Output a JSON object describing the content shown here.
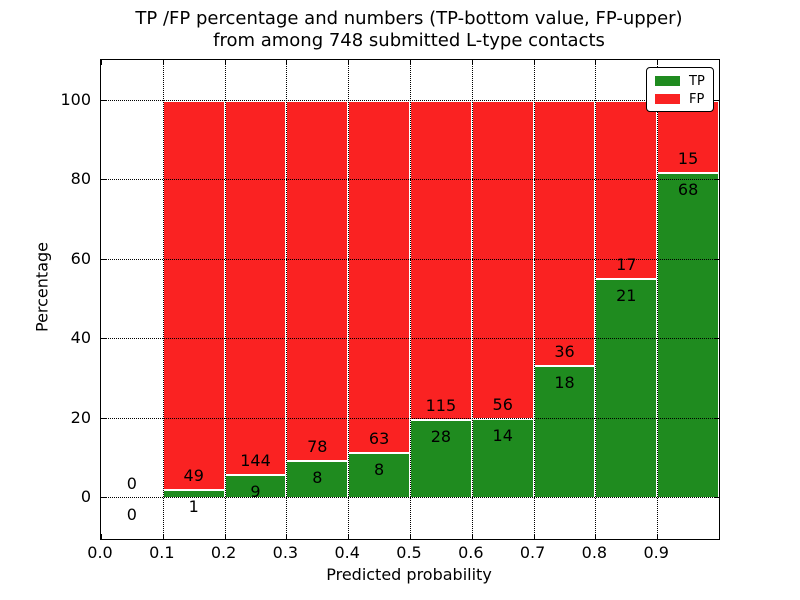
{
  "chart_data": {
    "type": "bar",
    "stacked": true,
    "values_shown_as": "percentage of bin total, with raw counts as labels (TP bottom, FP upper)",
    "title_line1": "TP /FP percentage and numbers (TP-bottom value, FP-upper)",
    "title_line2": "from among 748 submitted L-type contacts",
    "xlabel": "Predicted probability",
    "ylabel": "Percentage",
    "total_submitted": 748,
    "bin_width": 0.1,
    "bins": [
      {
        "x_start": 0.0,
        "tp": 0,
        "fp": 0
      },
      {
        "x_start": 0.1,
        "tp": 1,
        "fp": 49
      },
      {
        "x_start": 0.2,
        "tp": 9,
        "fp": 144
      },
      {
        "x_start": 0.3,
        "tp": 8,
        "fp": 78
      },
      {
        "x_start": 0.4,
        "tp": 8,
        "fp": 63
      },
      {
        "x_start": 0.5,
        "tp": 28,
        "fp": 115
      },
      {
        "x_start": 0.6,
        "tp": 14,
        "fp": 56
      },
      {
        "x_start": 0.7,
        "tp": 18,
        "fp": 36
      },
      {
        "x_start": 0.8,
        "tp": 21,
        "fp": 17
      },
      {
        "x_start": 0.9,
        "tp": 68,
        "fp": 15
      }
    ],
    "series": [
      {
        "name": "TP",
        "color": "#1f8b1f"
      },
      {
        "name": "FP",
        "color": "#fa2222"
      }
    ],
    "legend": [
      {
        "label": "TP",
        "color": "#1f8b1f"
      },
      {
        "label": "FP",
        "color": "#fa2222"
      }
    ],
    "legend_position": "upper right",
    "xticks": [
      "0.0",
      "0.1",
      "0.2",
      "0.3",
      "0.4",
      "0.5",
      "0.6",
      "0.7",
      "0.8",
      "0.9"
    ],
    "yticks": [
      0,
      20,
      40,
      60,
      80,
      100
    ],
    "xlim": [
      0.0,
      1.0
    ],
    "ylim": [
      -10.3,
      110.3
    ],
    "grid": "dotted, on all major ticks, drawn above bars",
    "bar_edge_color": "#ffffff"
  }
}
